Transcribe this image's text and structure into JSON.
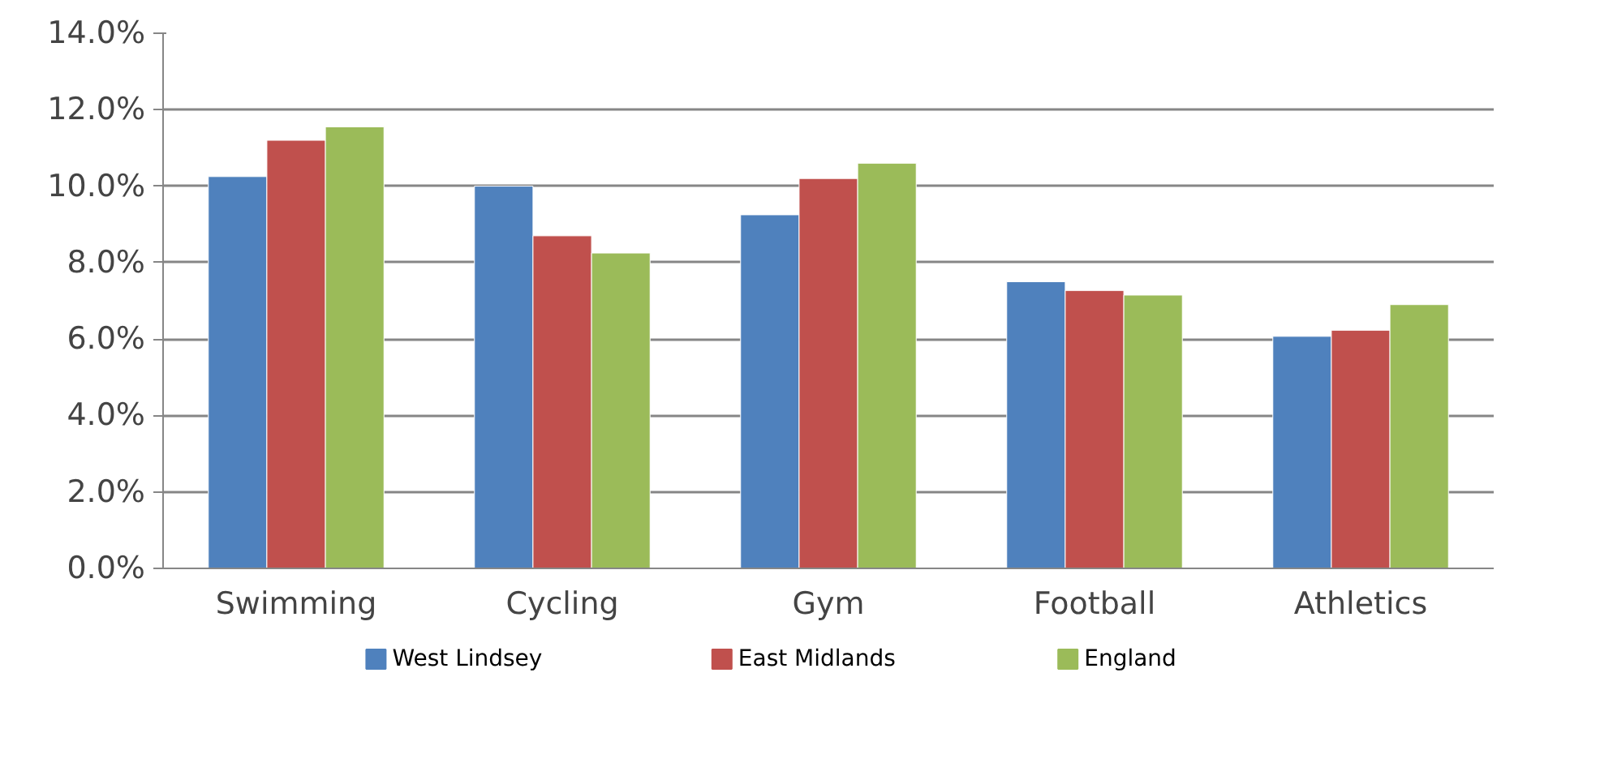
{
  "chart_data": {
    "type": "bar",
    "categories": [
      "Swimming",
      "Cycling",
      "Gym",
      "Football",
      "Athletics"
    ],
    "series": [
      {
        "name": "West Lindsey",
        "color": "#4f81bd",
        "values": [
          10.25,
          10.0,
          9.25,
          7.5,
          6.07
        ]
      },
      {
        "name": "East Midlands",
        "color": "#c0504d",
        "values": [
          11.2,
          8.7,
          10.2,
          7.27,
          6.23
        ]
      },
      {
        "name": "England",
        "color": "#9bbb59",
        "values": [
          11.55,
          8.25,
          10.6,
          7.15,
          6.9
        ]
      }
    ],
    "ylim": [
      0,
      14
    ],
    "yticks": [
      {
        "value": 0,
        "label": "0.0%"
      },
      {
        "value": 2,
        "label": "2.0%"
      },
      {
        "value": 4,
        "label": "4.0%"
      },
      {
        "value": 6,
        "label": "6.0%"
      },
      {
        "value": 8,
        "label": "8.0%"
      },
      {
        "value": 10,
        "label": "10.0%"
      },
      {
        "value": 12,
        "label": "12.0%"
      },
      {
        "value": 14,
        "label": "14.0%"
      }
    ],
    "grid": "y",
    "legend": "bottom"
  }
}
